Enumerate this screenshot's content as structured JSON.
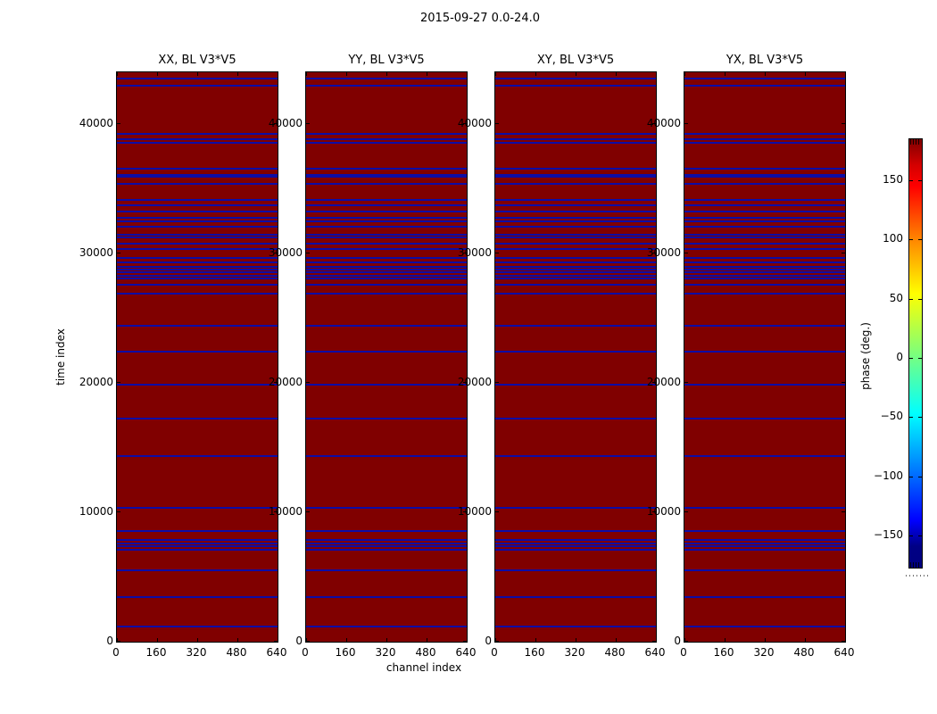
{
  "chart_data": {
    "type": "heatmap",
    "title": "2015-09-27 0.0-24.0",
    "subplot_titles": [
      "XX, BL V3*V5",
      "YY, BL V3*V5",
      "XY, BL V3*V5",
      "YX, BL V3*V5"
    ],
    "xlabel": "channel index",
    "ylabel": "time index",
    "x_range": [
      0,
      640
    ],
    "y_range": [
      0,
      44000
    ],
    "x_tick_labels": [
      "0",
      "160",
      "320",
      "480",
      "640"
    ],
    "x_tick_values": [
      0,
      160,
      320,
      480,
      640
    ],
    "y_tick_labels": [
      "0",
      "10000",
      "20000",
      "30000",
      "40000"
    ],
    "y_tick_values": [
      0,
      10000,
      20000,
      30000,
      40000
    ],
    "grid": false,
    "base_phase_deg": 180,
    "flagged_phase_deg": -180,
    "flagged_times": [
      43550,
      42950,
      39240,
      38830,
      38550,
      36550,
      36100,
      35950,
      35380,
      34120,
      33730,
      33250,
      32730,
      32500,
      32070,
      31470,
      31240,
      30760,
      30340,
      29660,
      29310,
      28990,
      28760,
      28530,
      28300,
      28070,
      27570,
      26920,
      24390,
      22390,
      19860,
      17220,
      14350,
      10370,
      8530,
      7840,
      7610,
      7380,
      7100,
      5540,
      3430,
      1170
    ],
    "colors": {
      "base": "#800000",
      "flag_line": "#0c0ca6",
      "axis": "#000000"
    },
    "colorbar": {
      "label": "phase (deg.)",
      "colormap": "jet",
      "range": [
        -180,
        180
      ],
      "tick_labels": [
        "150",
        "100",
        "50",
        "0",
        "−50",
        "−100",
        "−150"
      ],
      "tick_values": [
        150,
        100,
        50,
        0,
        -50,
        -100,
        -150
      ]
    }
  }
}
